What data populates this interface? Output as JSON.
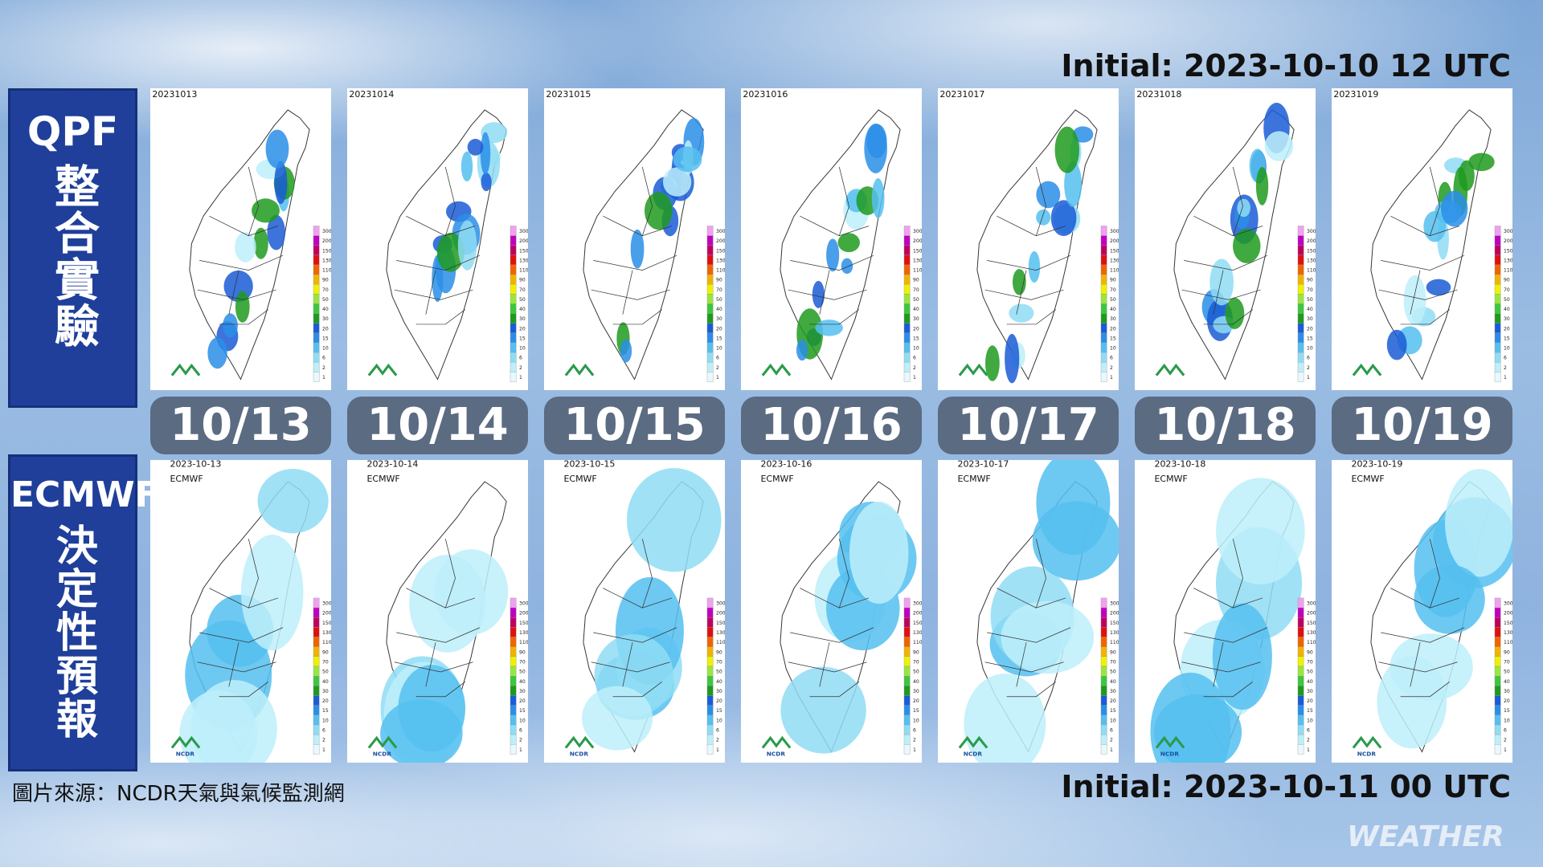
{
  "header": {
    "initial_top": "Initial: 2023-10-10 12 UTC",
    "initial_bottom": "Initial: 2023-10-11 00 UTC"
  },
  "rows": [
    {
      "label_1": "QPF",
      "label_2": "整合實驗",
      "maps": [
        "20231013",
        "20231014",
        "20231015",
        "20231016",
        "20231017",
        "20231018",
        "20231019"
      ]
    },
    {
      "label_1": "ECMWF",
      "label_2": "決定性預報",
      "model": "ECMWF",
      "logo": "NCDR",
      "maps": [
        "2023-10-13",
        "2023-10-14",
        "2023-10-15",
        "2023-10-16",
        "2023-10-17",
        "2023-10-18",
        "2023-10-19"
      ]
    }
  ],
  "days": [
    "10/13",
    "10/14",
    "10/15",
    "10/16",
    "10/17",
    "10/18",
    "10/19"
  ],
  "legend": {
    "levels": [
      300,
      200,
      150,
      130,
      110,
      90,
      70,
      50,
      40,
      30,
      20,
      15,
      10,
      6,
      2,
      1
    ],
    "colors": [
      "#f0a0f0",
      "#c000c0",
      "#c00060",
      "#e01010",
      "#f06400",
      "#f0b400",
      "#f0f000",
      "#9ae63c",
      "#3cc83c",
      "#1e9a1e",
      "#1a5cd6",
      "#2a8ee8",
      "#55bff0",
      "#8fdcf5",
      "#bdeffa",
      "#e8f8ff"
    ]
  },
  "source": "圖片來源：NCDR天氣與氣候監測網",
  "watermark": "WEATHER"
}
